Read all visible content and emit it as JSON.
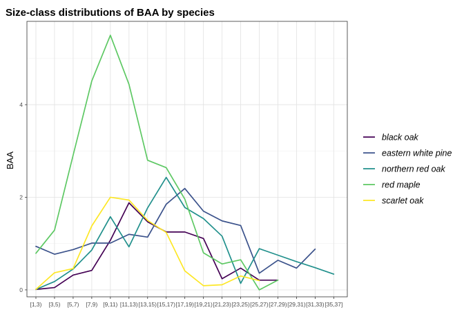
{
  "chart_data": {
    "type": "line",
    "title": "Size-class distributions of BAA by species",
    "xlabel": "",
    "ylabel": "BAA",
    "categories": [
      "[1,3)",
      "[3,5)",
      "[5,7)",
      "[7,9)",
      "[9,11)",
      "[11,13)",
      "[13,15)",
      "[15,17)",
      "[17,19)",
      "[19,21)",
      "[21,23)",
      "[23,25)",
      "[25,27)",
      "[27,29)",
      "[29,31)",
      "[31,33)",
      "[35,37]"
    ],
    "ylim": [
      -0.15,
      5.8
    ],
    "yticks": [
      0,
      2,
      4
    ],
    "grid": true,
    "legend_position": "right",
    "series": [
      {
        "name": "black oak",
        "color": "#440154",
        "values": [
          0.01,
          0.05,
          0.32,
          0.42,
          1.07,
          1.88,
          1.47,
          1.25,
          1.25,
          1.11,
          0.24,
          0.47,
          0.21,
          0.21,
          null,
          null,
          null
        ]
      },
      {
        "name": "eastern white pine",
        "color": "#3B528B",
        "values": [
          0.94,
          0.77,
          0.87,
          1.01,
          1.01,
          1.2,
          1.14,
          1.85,
          2.19,
          1.7,
          1.49,
          1.39,
          0.36,
          0.64,
          0.47,
          0.88,
          null
        ]
      },
      {
        "name": "northern red oak",
        "color": "#21908C",
        "values": [
          0.01,
          0.18,
          0.45,
          0.86,
          1.58,
          0.93,
          1.77,
          2.43,
          1.78,
          1.54,
          1.16,
          0.14,
          0.89,
          0.75,
          0.61,
          0.48,
          0.34
        ]
      },
      {
        "name": "red maple",
        "color": "#5DC863",
        "values": [
          0.79,
          1.29,
          2.91,
          4.51,
          5.5,
          4.44,
          2.8,
          2.64,
          1.96,
          0.8,
          0.56,
          0.65,
          0.0,
          0.21,
          null,
          null,
          null
        ]
      },
      {
        "name": "scarlet oak",
        "color": "#FDE725",
        "values": [
          0.01,
          0.37,
          0.46,
          1.38,
          2.0,
          1.94,
          1.5,
          1.24,
          0.41,
          0.09,
          0.11,
          0.3,
          0.2,
          null,
          null,
          null,
          null
        ]
      }
    ]
  }
}
